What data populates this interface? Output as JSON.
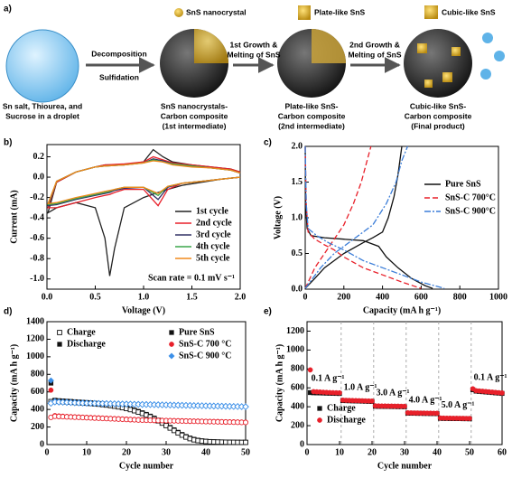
{
  "schematic": {
    "panel": "a)",
    "insets": [
      "SnS nanocrystal",
      "Plate-like SnS",
      "Cubic-like SnS"
    ],
    "steps": [
      [
        "Decomposition",
        "Sulfidation"
      ],
      [
        "1st Growth &",
        "Melting of SnS"
      ],
      [
        "2nd Growth &",
        "Melting of SnS"
      ]
    ],
    "captions": [
      [
        "Sn salt, Thiourea, and",
        "Sucrose in a droplet"
      ],
      [
        "SnS nanocrystals-",
        "Carbon composite",
        "(1st intermediate)"
      ],
      [
        "Plate-like SnS-",
        "Carbon composite",
        "(2nd intermediate)"
      ],
      [
        "Cubic-like SnS-",
        "Carbon composite",
        "(Final product)"
      ]
    ]
  },
  "chart_data": [
    {
      "type": "line",
      "panel": "b)",
      "x_label": "Voltage (V)",
      "y_label": "Current (mA)",
      "xlim": [
        0,
        2
      ],
      "xticks": [
        {
          "value": 0,
          "label": "0.0"
        },
        0.5,
        {
          "value": 1,
          "label": "1.0"
        },
        1.5,
        {
          "value": 2,
          "label": "2.0"
        }
      ],
      "ylim": [
        -1.1,
        0.32
      ],
      "yticks": [
        {
          "value": -1,
          "label": "-1.0"
        },
        -0.8,
        -0.6,
        -0.4,
        -0.2,
        {
          "value": 0,
          "label": "0.0"
        },
        0.2
      ],
      "legend": "lower right",
      "annotation": "Scan rate =  0.1 mV s⁻¹",
      "x": [
        2.0,
        1.8,
        1.6,
        1.4,
        1.25,
        1.15,
        1.0,
        0.8,
        0.7,
        0.65,
        0.6,
        0.5,
        0.3,
        0.1,
        0.01,
        0.1,
        0.3,
        0.5,
        0.6,
        0.8,
        1.0,
        1.1,
        1.2,
        1.3,
        1.5,
        1.7,
        1.9,
        2.0
      ],
      "series": [
        {
          "name": "1st cycle",
          "color": "#222222",
          "linestyle": "solid",
          "values": [
            0,
            -0.02,
            -0.05,
            -0.08,
            -0.12,
            -0.15,
            -0.2,
            -0.3,
            -0.7,
            -0.97,
            -0.6,
            -0.3,
            -0.25,
            -0.3,
            -0.35,
            -0.05,
            0.05,
            0.1,
            0.12,
            0.12,
            0.15,
            0.27,
            0.2,
            0.15,
            0.12,
            0.1,
            0.08,
            0.05
          ]
        },
        {
          "name": "2nd cycle",
          "color": "#e8202a",
          "linestyle": "solid",
          "values": [
            0,
            -0.02,
            -0.04,
            -0.06,
            -0.12,
            -0.28,
            -0.12,
            -0.12,
            -0.15,
            -0.17,
            -0.18,
            -0.2,
            -0.25,
            -0.3,
            -0.3,
            -0.05,
            0.05,
            0.1,
            0.12,
            0.13,
            0.15,
            0.2,
            0.17,
            0.14,
            0.12,
            0.1,
            0.08,
            0.05
          ]
        },
        {
          "name": "3rd cycle",
          "color": "#333366",
          "linestyle": "solid",
          "values": [
            0,
            -0.02,
            -0.04,
            -0.06,
            -0.1,
            -0.22,
            -0.1,
            -0.11,
            -0.13,
            -0.15,
            -0.16,
            -0.18,
            -0.22,
            -0.27,
            -0.28,
            -0.04,
            0.05,
            0.1,
            0.11,
            0.12,
            0.14,
            0.18,
            0.16,
            0.13,
            0.11,
            0.09,
            0.07,
            0.04
          ]
        },
        {
          "name": "4th cycle",
          "color": "#3aa64a",
          "linestyle": "solid",
          "values": [
            0,
            -0.02,
            -0.04,
            -0.06,
            -0.09,
            -0.18,
            -0.1,
            -0.1,
            -0.12,
            -0.14,
            -0.15,
            -0.17,
            -0.21,
            -0.26,
            -0.27,
            -0.04,
            0.05,
            0.1,
            0.11,
            0.12,
            0.14,
            0.17,
            0.15,
            0.13,
            0.11,
            0.09,
            0.07,
            0.04
          ]
        },
        {
          "name": "5th cycle",
          "color": "#f08a1c",
          "linestyle": "solid",
          "values": [
            0,
            -0.02,
            -0.04,
            -0.06,
            -0.09,
            -0.16,
            -0.1,
            -0.1,
            -0.12,
            -0.13,
            -0.14,
            -0.16,
            -0.2,
            -0.25,
            -0.26,
            -0.04,
            0.05,
            0.1,
            0.11,
            0.12,
            0.14,
            0.16,
            0.15,
            0.12,
            0.1,
            0.09,
            0.07,
            0.04
          ]
        }
      ]
    },
    {
      "type": "line",
      "panel": "c)",
      "x_label": "Capacity (mA h g⁻¹)",
      "y_label": "Voltage (V)",
      "xlim": [
        0,
        1000
      ],
      "xticks": [
        0,
        200,
        400,
        600,
        800,
        1000
      ],
      "ylim": [
        0,
        2
      ],
      "yticks": [
        {
          "value": 0,
          "label": "0.0"
        },
        0.5,
        {
          "value": 1,
          "label": "1.0"
        },
        1.5,
        {
          "value": 2,
          "label": "2.0"
        }
      ],
      "legend": "upper right",
      "series": [
        {
          "name": "Pure SnS",
          "color": "#111111",
          "linestyle": "solid",
          "x": [
            0,
            2,
            10,
            30,
            100,
            200,
            300,
            380,
            420,
            480,
            550,
            620,
            660,
            null,
            0,
            50,
            100,
            200,
            300,
            350,
            400,
            430,
            460,
            480,
            500
          ],
          "values": [
            2.0,
            1.2,
            0.85,
            0.75,
            0.72,
            0.7,
            0.68,
            0.6,
            0.45,
            0.3,
            0.15,
            0.05,
            0.01,
            null,
            0.01,
            0.15,
            0.3,
            0.5,
            0.65,
            0.72,
            0.8,
            1.0,
            1.3,
            1.6,
            2.0
          ]
        },
        {
          "name": "SnS-C 700°C",
          "color": "#e8202a",
          "linestyle": "dashed",
          "x": [
            0,
            5,
            15,
            50,
            100,
            150,
            200,
            300,
            400,
            500,
            600,
            null,
            0,
            50,
            100,
            150,
            200,
            250,
            290,
            320,
            340
          ],
          "values": [
            2.0,
            1.2,
            0.8,
            0.7,
            0.62,
            0.55,
            0.45,
            0.3,
            0.2,
            0.1,
            0.01,
            null,
            0.01,
            0.3,
            0.5,
            0.7,
            0.9,
            1.2,
            1.5,
            1.8,
            2.0
          ]
        },
        {
          "name": "SnS-C 900°C",
          "color": "#3b7dd8",
          "linestyle": "dashdot",
          "x": [
            0,
            5,
            15,
            60,
            120,
            200,
            300,
            400,
            500,
            600,
            720,
            null,
            0,
            80,
            150,
            250,
            350,
            420,
            470,
            500,
            530
          ],
          "values": [
            2.0,
            1.2,
            0.85,
            0.75,
            0.65,
            0.55,
            0.4,
            0.3,
            0.2,
            0.1,
            0.01,
            null,
            0.01,
            0.3,
            0.5,
            0.7,
            0.9,
            1.2,
            1.5,
            1.8,
            2.0
          ]
        }
      ]
    },
    {
      "type": "scatter",
      "panel": "d)",
      "x_label": "Cycle number",
      "y_label": "Capacity (mA h g⁻¹)",
      "xlim": [
        0,
        50
      ],
      "xticks": [
        0,
        10,
        20,
        30,
        40,
        50
      ],
      "ylim": [
        0,
        1400
      ],
      "yticks": [
        0,
        200,
        400,
        600,
        800,
        1000,
        1200,
        1400
      ],
      "legend": "upper right",
      "marker_legend": [
        "Charge",
        "Discharge"
      ],
      "x": [
        1,
        2,
        3,
        4,
        5,
        6,
        7,
        8,
        9,
        10,
        11,
        12,
        13,
        14,
        15,
        16,
        17,
        18,
        19,
        20,
        21,
        22,
        23,
        24,
        25,
        26,
        27,
        28,
        29,
        30,
        31,
        32,
        33,
        34,
        35,
        36,
        37,
        38,
        39,
        40,
        41,
        42,
        43,
        44,
        45,
        46,
        47,
        48,
        49,
        50
      ],
      "series": [
        {
          "name": "Pure SnS",
          "color": "#111111",
          "marker": "square",
          "values": [
            700,
            505,
            500,
            497,
            494,
            491,
            488,
            485,
            482,
            479,
            476,
            472,
            468,
            463,
            458,
            452,
            445,
            437,
            428,
            418,
            406,
            393,
            378,
            362,
            344,
            324,
            302,
            278,
            252,
            224,
            196,
            168,
            140,
            115,
            92,
            74,
            60,
            50,
            43,
            38,
            35,
            33,
            31,
            30,
            29,
            28,
            27,
            27,
            26,
            26
          ],
          "charge_values": [
            490,
            495,
            492,
            489,
            486,
            483,
            480,
            477,
            474,
            471,
            468,
            464,
            460,
            455,
            450,
            444,
            437,
            429,
            420,
            410,
            398,
            385,
            370,
            354,
            336,
            316,
            294,
            270,
            244,
            216,
            188,
            160,
            132,
            107,
            85,
            67,
            54,
            45,
            39,
            35,
            32,
            30,
            29,
            28,
            27,
            26,
            26,
            25,
            25,
            25
          ]
        },
        {
          "name": "SnS-C 700 °C",
          "color": "#e8202a",
          "marker": "circle",
          "values": [
            620,
            330,
            326,
            323,
            320,
            318,
            316,
            314,
            312,
            310,
            308,
            306,
            304,
            302,
            300,
            298,
            296,
            294,
            292,
            290,
            288,
            286,
            284,
            282,
            280,
            279,
            278,
            277,
            276,
            275,
            274,
            273,
            272,
            271,
            270,
            269,
            268,
            267,
            266,
            265,
            264,
            263,
            262,
            261,
            260,
            259,
            258,
            257,
            256,
            255
          ],
          "charge_values": [
            310,
            322,
            320,
            318,
            316,
            314,
            312,
            310,
            308,
            306,
            304,
            302,
            300,
            298,
            296,
            294,
            292,
            290,
            288,
            286,
            284,
            282,
            280,
            278,
            277,
            276,
            275,
            274,
            273,
            272,
            271,
            270,
            269,
            268,
            267,
            266,
            265,
            264,
            263,
            262,
            261,
            260,
            259,
            258,
            257,
            256,
            255,
            254,
            253,
            252
          ]
        },
        {
          "name": "SnS-C 900 °C",
          "color": "#3b8fe8",
          "marker": "diamond",
          "values": [
            730,
            495,
            490,
            487,
            485,
            483,
            481,
            479,
            477,
            475,
            474,
            473,
            472,
            471,
            470,
            469,
            468,
            467,
            466,
            465,
            464,
            463,
            462,
            461,
            460,
            459,
            458,
            457,
            456,
            455,
            454,
            453,
            452,
            451,
            450,
            449,
            448,
            447,
            446,
            445,
            444,
            443,
            442,
            441,
            440,
            439,
            438,
            437,
            436,
            435
          ],
          "charge_values": [
            470,
            485,
            484,
            482,
            480,
            478,
            476,
            474,
            472,
            471,
            470,
            469,
            468,
            467,
            466,
            465,
            464,
            463,
            462,
            461,
            460,
            459,
            458,
            457,
            456,
            455,
            454,
            453,
            452,
            451,
            450,
            449,
            448,
            447,
            446,
            445,
            444,
            443,
            442,
            441,
            440,
            439,
            438,
            437,
            436,
            435,
            434,
            433,
            432,
            431
          ]
        }
      ]
    },
    {
      "type": "scatter",
      "panel": "e)",
      "x_label": "Cycle number",
      "y_label": "Capacity (mA h g⁻¹)",
      "xlim": [
        0,
        60
      ],
      "xticks": [
        0,
        10,
        20,
        30,
        40,
        50,
        60
      ],
      "ylim": [
        0,
        1300
      ],
      "yticks": [
        0,
        200,
        400,
        600,
        800,
        1000,
        1200
      ],
      "legend": "lower left",
      "vlines": [
        10,
        20,
        30,
        40,
        50
      ],
      "annotations": [
        "0.1 A g⁻¹",
        "1.0 A g⁻¹",
        "3.0 A g⁻¹",
        "4.0 A g⁻¹",
        "5.0 A g⁻¹",
        "0.1 A g⁻¹"
      ],
      "x": [
        1,
        2,
        3,
        4,
        5,
        6,
        7,
        8,
        9,
        10,
        11,
        12,
        13,
        14,
        15,
        16,
        17,
        18,
        19,
        20,
        21,
        22,
        23,
        24,
        25,
        26,
        27,
        28,
        29,
        30,
        31,
        32,
        33,
        34,
        35,
        36,
        37,
        38,
        39,
        40,
        41,
        42,
        43,
        44,
        45,
        46,
        47,
        48,
        49,
        50,
        51,
        52,
        53,
        54,
        55,
        56,
        57,
        58,
        59,
        60
      ],
      "series": [
        {
          "name": "Charge",
          "color": "#111111",
          "marker": "square",
          "values": [
            550,
            548,
            547,
            546,
            545,
            544,
            543,
            542,
            541,
            540,
            465,
            464,
            463,
            462,
            461,
            460,
            459,
            458,
            457,
            456,
            405,
            404,
            404,
            403,
            403,
            402,
            402,
            401,
            401,
            400,
            332,
            331,
            331,
            330,
            330,
            329,
            329,
            328,
            328,
            327,
            277,
            276,
            276,
            275,
            275,
            274,
            274,
            273,
            273,
            272,
            580,
            565,
            562,
            559,
            556,
            553,
            550,
            547,
            544,
            541
          ]
        },
        {
          "name": "Discharge",
          "color": "#e8202a",
          "marker": "circle",
          "values": [
            790,
            560,
            558,
            556,
            554,
            552,
            550,
            549,
            548,
            547,
            470,
            468,
            467,
            466,
            465,
            464,
            463,
            462,
            461,
            460,
            410,
            409,
            408,
            408,
            407,
            407,
            406,
            406,
            405,
            405,
            336,
            335,
            334,
            334,
            333,
            333,
            332,
            332,
            331,
            331,
            281,
            280,
            279,
            279,
            278,
            278,
            277,
            277,
            276,
            276,
            590,
            570,
            567,
            564,
            561,
            558,
            555,
            552,
            549,
            546
          ]
        }
      ]
    }
  ]
}
